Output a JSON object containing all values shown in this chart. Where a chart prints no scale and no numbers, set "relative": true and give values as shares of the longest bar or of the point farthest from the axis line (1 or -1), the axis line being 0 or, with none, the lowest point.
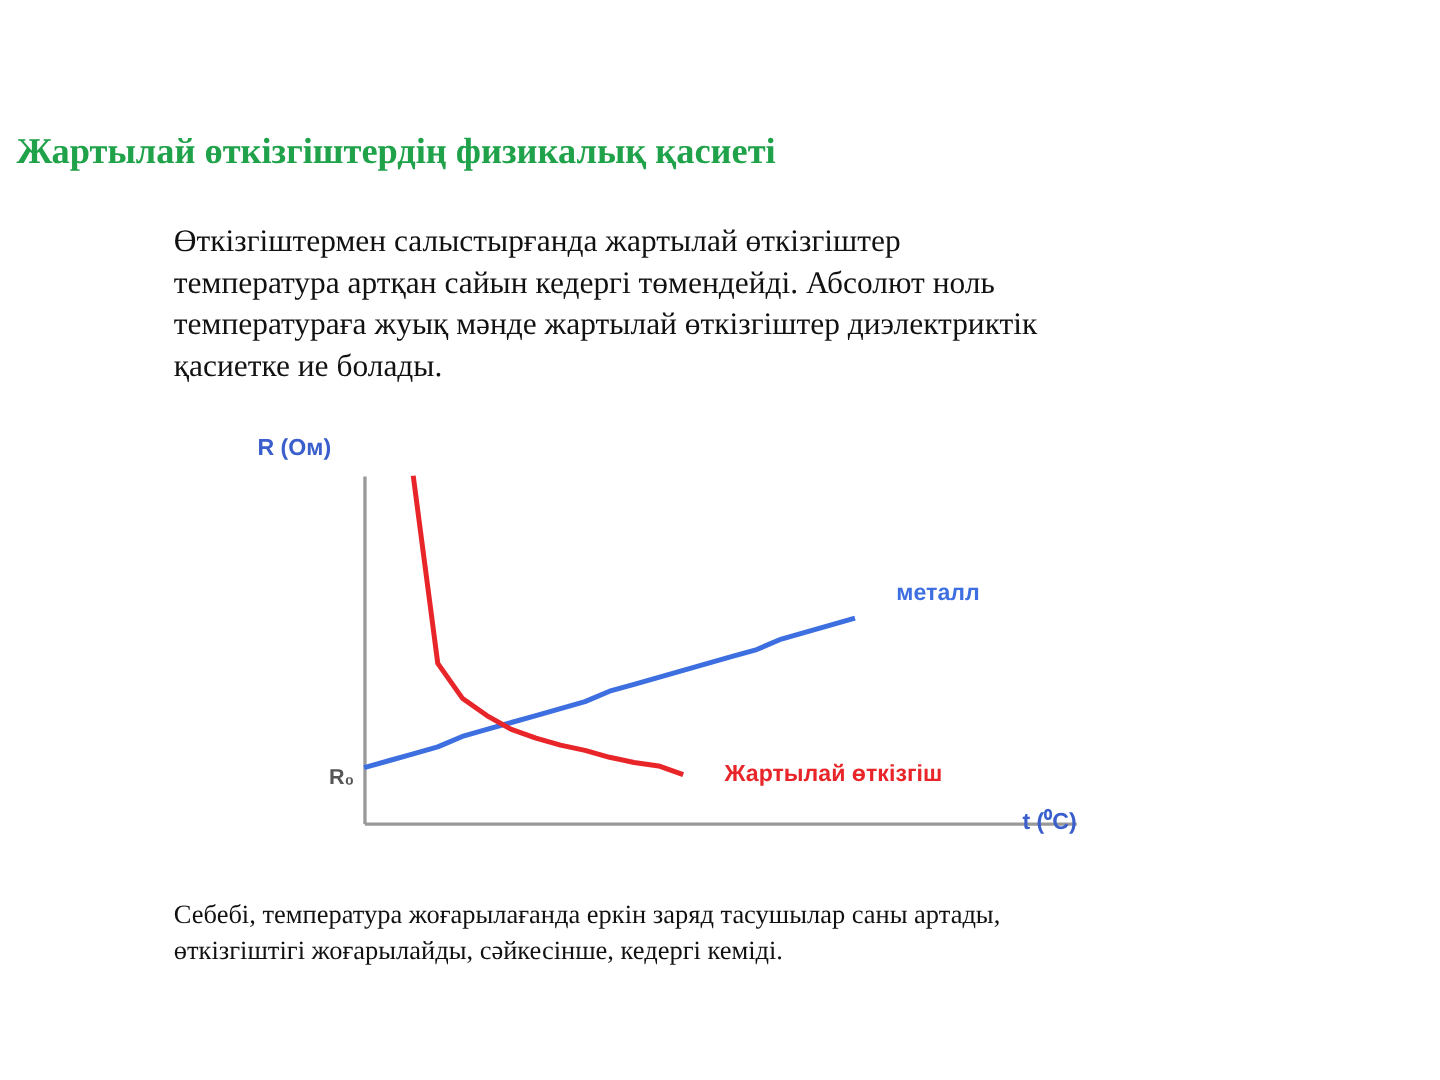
{
  "chart_data": {
    "type": "line",
    "relative": true,
    "title": "Жартылай өткізгіштердің физикалық қасиеті",
    "subtitle": "Өткізгіштермен салыстырғанда жартылай өткізгіштер температура артқан сайын кедергі төмендейді. Абсолют ноль температураға жуық мәнде жартылай өткізгіштер диэлектриктік қасиетке ие болады.",
    "xlabel": "t (⁰C)",
    "ylabel": "R (Ом)",
    "tick_labels": false,
    "marker": "none",
    "line_style": "solid",
    "categories": [
      null,
      null,
      null,
      null,
      null,
      null,
      null,
      null,
      null,
      null,
      null,
      null,
      null,
      null,
      null,
      null,
      null,
      null,
      null,
      null,
      null,
      null,
      null,
      null,
      null,
      null,
      null,
      null,
      null,
      null
    ],
    "series": [
      {
        "name": "металл",
        "color": "#3d6fe0",
        "values": [
          0.16,
          0.18,
          0.2,
          0.22,
          0.25,
          0.27,
          0.29,
          0.31,
          0.33,
          0.35,
          0.38,
          0.4,
          0.42,
          0.44,
          0.46,
          0.48,
          0.5,
          0.53,
          0.55,
          0.57,
          0.59,
          null,
          null,
          null,
          null,
          null,
          null,
          null,
          null,
          null
        ]
      },
      {
        "name": "Жартылай өткізгіш",
        "color": "#e8262a",
        "values": [
          null,
          null,
          1.0,
          0.46,
          0.36,
          0.31,
          0.27,
          0.245,
          0.225,
          0.21,
          0.19,
          0.175,
          0.165,
          0.14,
          null,
          null,
          null,
          null,
          null,
          null,
          null,
          null,
          null,
          null,
          null,
          null,
          null,
          null,
          null,
          null
        ]
      }
    ],
    "annotations": [
      "R₀",
      "Себебі, температура жоғарылағанда еркін заряд тасушылар саны артады, өткізгіштігі жоғарылайды, сәйкесінше, кедергі кеміді."
    ]
  }
}
